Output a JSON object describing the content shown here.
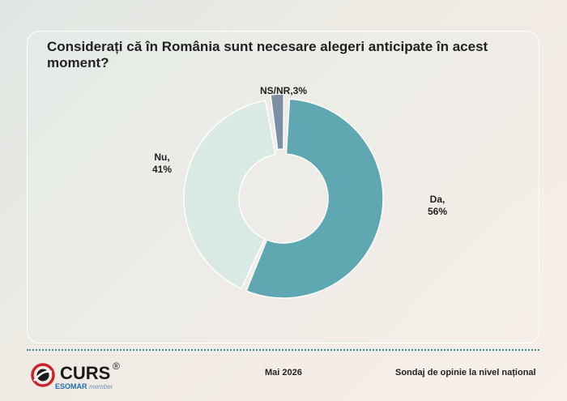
{
  "chart_data": {
    "type": "pie",
    "donut": true,
    "title": "Considerați că în România sunt necesare alegeri anticipate în acest moment?",
    "slices": [
      {
        "label": "Da",
        "value": 56,
        "value_label": "56%",
        "color": "#5fa8b2"
      },
      {
        "label": "Nu",
        "value": 41,
        "value_label": "41%",
        "color": "#d9e9e4"
      },
      {
        "label": "NS/NR",
        "value": 3,
        "value_label": "3%",
        "color": "#7d8fa6"
      }
    ]
  },
  "footer": {
    "logo_text": "CURS",
    "logo_registered": "®",
    "logo_subtitle": "ESOMAR",
    "logo_subtitle_member": "member",
    "date": "Mai 2026",
    "note": "Sondaj de opinie la nivel național"
  }
}
